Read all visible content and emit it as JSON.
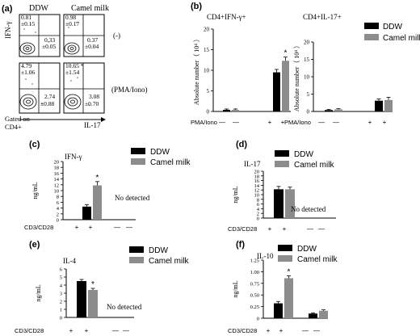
{
  "figure": {
    "panel_a": {
      "letter": "(a)",
      "col_headers": [
        "DDW",
        "Camel milk"
      ],
      "row_labels": [
        "(-)",
        "(PMA/Iono)"
      ],
      "y_label": "IFN-γ",
      "x_label": "IL-17",
      "gate_line1": "Gated on",
      "gate_line2": "CD4+",
      "quadrant_values": {
        "unstim_ddw_ul": [
          "0.81",
          "±0.15"
        ],
        "unstim_ddw_ur": [
          "0.33",
          "±0.05"
        ],
        "unstim_cm_ul": [
          "0.98",
          "±0.17"
        ],
        "unstim_cm_ur": [
          "0.37",
          "±0.04"
        ],
        "stim_ddw_ul": [
          "4.79",
          "±1.06"
        ],
        "stim_ddw_lr": [
          "2.74",
          "±0.88"
        ],
        "stim_cm_ul": [
          "10.65 *",
          "±1.54"
        ],
        "stim_cm_lr": [
          "3.08",
          "±0.70"
        ]
      }
    },
    "legend": {
      "ddw": "DDW",
      "camel": "Camel milk"
    },
    "colors": {
      "ddw": "#000000",
      "camel": "#8c8c8c"
    },
    "not_detected": "No detected"
  },
  "chart_data": [
    {
      "panel": "(b)",
      "type": "bar",
      "title": "CD4+IFN-γ+",
      "ylabel": "Absolute number（ 10⁴ ）",
      "ylim": [
        0,
        20
      ],
      "ticks": [
        "0",
        "5",
        "10",
        "15",
        "20"
      ],
      "treatment_label": "PMA/Iono",
      "treatment": [
        "—",
        "—",
        "+",
        "+"
      ],
      "series": [
        {
          "name": "DDW",
          "values": [
            0.4,
            9.5
          ],
          "errors": [
            0.2,
            0.7
          ]
        },
        {
          "name": "Camel milk",
          "values": [
            0.4,
            12.3
          ],
          "errors": [
            0.2,
            0.9
          ]
        }
      ],
      "annotations": [
        {
          "text": "*",
          "group": 1,
          "series": 1
        }
      ]
    },
    {
      "panel": "(b)",
      "type": "bar",
      "title": "CD4+IL-17+",
      "ylabel": "Absolute number（ 10⁴ ）",
      "ylim": [
        0,
        20
      ],
      "ticks": [
        "0",
        "5",
        "10",
        "15",
        "20"
      ],
      "treatment_label": "PMA/Iono",
      "treatment": [
        "—",
        "—",
        "+",
        "+"
      ],
      "series": [
        {
          "name": "DDW",
          "values": [
            0.4,
            3.1
          ],
          "errors": [
            0.2,
            0.5
          ]
        },
        {
          "name": "Camel milk",
          "values": [
            0.6,
            3.3
          ],
          "errors": [
            0.2,
            0.8
          ]
        }
      ],
      "annotations": []
    },
    {
      "panel": "(c)",
      "type": "bar",
      "title": "IFN-γ",
      "ylabel": "ng/mL",
      "ylim": [
        0,
        20
      ],
      "ticks": [
        "0",
        "2",
        "4",
        "6",
        "8",
        "10",
        "12",
        "14",
        "16",
        "18",
        "20"
      ],
      "treatment_label": "CD3/CD28",
      "treatment": [
        "+",
        "+",
        "—",
        "—"
      ],
      "series": [
        {
          "name": "DDW",
          "values": [
            4.5
          ],
          "errors": [
            0.7
          ]
        },
        {
          "name": "Camel milk",
          "values": [
            11.8
          ],
          "errors": [
            1.3
          ]
        }
      ],
      "annotations": [
        {
          "text": "*",
          "group": 0,
          "series": 1
        }
      ]
    },
    {
      "panel": "(d)",
      "type": "bar",
      "title": "IL-17",
      "ylabel": "ng/mL",
      "ylim": [
        0,
        20
      ],
      "ticks": [
        "0",
        "2",
        "4",
        "6",
        "8",
        "10",
        "12",
        "14",
        "16",
        "18",
        "20"
      ],
      "treatment_label": "CD3/CD28",
      "treatment": [
        "+",
        "+",
        "—",
        "—"
      ],
      "series": [
        {
          "name": "DDW",
          "values": [
            12.3
          ],
          "errors": [
            1.2
          ]
        },
        {
          "name": "Camel milk",
          "values": [
            12.3
          ],
          "errors": [
            0.9
          ]
        }
      ],
      "annotations": []
    },
    {
      "panel": "(e)",
      "type": "bar",
      "title": "IL-4",
      "ylabel": "ng/mL",
      "ylim": [
        0,
        6
      ],
      "ticks": [
        "0",
        "1",
        "2",
        "3",
        "4",
        "5",
        "6"
      ],
      "treatment_label": "CD3/CD28",
      "treatment": [
        "+",
        "+",
        "—",
        "—"
      ],
      "series": [
        {
          "name": "DDW",
          "values": [
            4.5
          ],
          "errors": [
            0.2
          ]
        },
        {
          "name": "Camel milk",
          "values": [
            3.4
          ],
          "errors": [
            0.2
          ]
        }
      ],
      "annotations": [
        {
          "text": "*",
          "group": 0,
          "series": 1
        }
      ]
    },
    {
      "panel": "(f)",
      "type": "bar",
      "title": "IL-10",
      "ylabel": "ng/mL",
      "ylim": [
        0,
        1.25
      ],
      "ticks": [
        "0",
        "0.25",
        "0.50",
        "0.75",
        "1.00",
        "1.25"
      ],
      "treatment_label": "CD3/CD28",
      "treatment": [
        "+",
        "+",
        "—",
        "—"
      ],
      "series": [
        {
          "name": "DDW",
          "values": [
            0.32,
            0.1
          ],
          "errors": [
            0.04,
            0.015
          ]
        },
        {
          "name": "Camel milk",
          "values": [
            0.86,
            0.16
          ],
          "errors": [
            0.05,
            0.02
          ]
        }
      ],
      "annotations": [
        {
          "text": "*",
          "group": 0,
          "series": 1
        }
      ]
    }
  ]
}
